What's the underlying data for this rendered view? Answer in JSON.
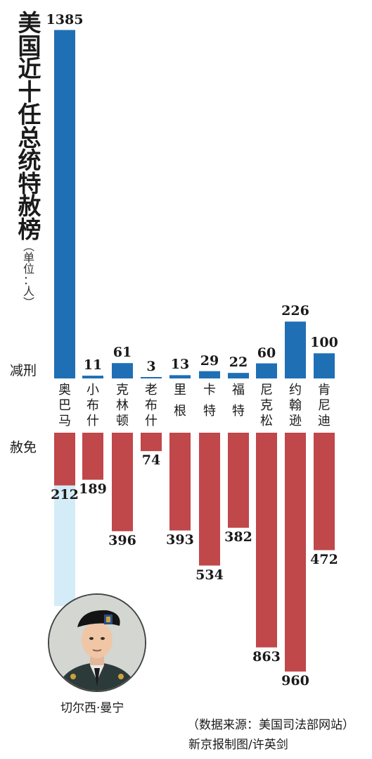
{
  "colors": {
    "commutation": "#1f6fb5",
    "pardon": "#c0474a",
    "highlight": "#d4ecf8"
  },
  "labels": {
    "title_chars": [
      "美",
      "国",
      "近",
      "十",
      "任",
      "总",
      "统",
      "特",
      "赦",
      "榜"
    ],
    "unit_chars": [
      "︵",
      "单",
      "位",
      "：",
      "人",
      "︶"
    ],
    "commutation_label": "减刑",
    "pardon_label": "赦免",
    "photo_caption": "切尔西·曼宁",
    "source": "（数据来源：美国司法部网站）",
    "credit": "新京报制图/许英剑"
  },
  "chart_data": {
    "type": "bar",
    "title": "美国近十任总统特赦榜",
    "unit": "（单位：人）",
    "categories": [
      "奥巴马",
      "小布什",
      "克林顿",
      "老布什",
      "里根",
      "卡特",
      "福特",
      "尼克松",
      "约翰逊",
      "肯尼迪"
    ],
    "series": [
      {
        "name": "减刑",
        "values": [
          1385,
          11,
          61,
          3,
          13,
          29,
          22,
          60,
          226,
          100
        ]
      },
      {
        "name": "赦免",
        "values": [
          212,
          189,
          396,
          74,
          393,
          534,
          382,
          863,
          960,
          472
        ]
      }
    ],
    "name_chars": [
      [
        "奥",
        "巴",
        "马"
      ],
      [
        "小",
        "布",
        "什"
      ],
      [
        "克",
        "林",
        "顿"
      ],
      [
        "老",
        "布",
        "什"
      ],
      [
        "里",
        "根"
      ],
      [
        "卡",
        "特"
      ],
      [
        "福",
        "特"
      ],
      [
        "尼",
        "克",
        "松"
      ],
      [
        "约",
        "翰",
        "逊"
      ],
      [
        "肯",
        "尼",
        "迪"
      ]
    ],
    "highlight": {
      "category": "奥巴马",
      "note": "切尔西·曼宁"
    }
  }
}
